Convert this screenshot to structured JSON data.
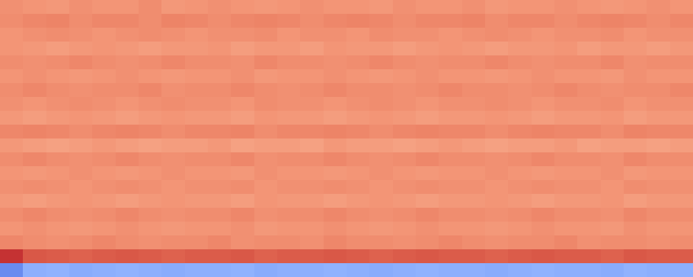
{
  "chart_data": {
    "type": "heatmap",
    "tick_labels": false,
    "zlim": [
      0,
      1
    ],
    "cells": [
      [
        0.77,
        0.76,
        0.75,
        0.77,
        0.76,
        0.76,
        0.78,
        0.75,
        0.76,
        0.77,
        0.76,
        0.75,
        0.76,
        0.77,
        0.76,
        0.76,
        0.75,
        0.77,
        0.76,
        0.76,
        0.77,
        0.75,
        0.76,
        0.76,
        0.77,
        0.76,
        0.75,
        0.76,
        0.77,
        0.76
      ],
      [
        0.78,
        0.79,
        0.8,
        0.78,
        0.79,
        0.79,
        0.78,
        0.8,
        0.79,
        0.78,
        0.79,
        0.8,
        0.79,
        0.78,
        0.79,
        0.8,
        0.79,
        0.78,
        0.79,
        0.79,
        0.8,
        0.78,
        0.79,
        0.79,
        0.78,
        0.79,
        0.8,
        0.79,
        0.78,
        0.79
      ],
      [
        0.76,
        0.77,
        0.78,
        0.77,
        0.76,
        0.77,
        0.78,
        0.77,
        0.76,
        0.77,
        0.77,
        0.78,
        0.76,
        0.77,
        0.77,
        0.76,
        0.78,
        0.77,
        0.77,
        0.76,
        0.77,
        0.78,
        0.77,
        0.76,
        0.77,
        0.77,
        0.78,
        0.76,
        0.77,
        0.77
      ],
      [
        0.76,
        0.75,
        0.74,
        0.75,
        0.76,
        0.75,
        0.74,
        0.75,
        0.75,
        0.76,
        0.74,
        0.75,
        0.75,
        0.74,
        0.76,
        0.75,
        0.75,
        0.74,
        0.75,
        0.76,
        0.75,
        0.74,
        0.75,
        0.75,
        0.76,
        0.74,
        0.75,
        0.75,
        0.74,
        0.75
      ],
      [
        0.78,
        0.77,
        0.78,
        0.79,
        0.78,
        0.77,
        0.78,
        0.79,
        0.78,
        0.78,
        0.77,
        0.79,
        0.78,
        0.78,
        0.77,
        0.78,
        0.79,
        0.78,
        0.77,
        0.78,
        0.78,
        0.79,
        0.78,
        0.77,
        0.78,
        0.78,
        0.79,
        0.77,
        0.78,
        0.78
      ],
      [
        0.76,
        0.77,
        0.76,
        0.75,
        0.76,
        0.77,
        0.76,
        0.75,
        0.76,
        0.76,
        0.77,
        0.75,
        0.76,
        0.76,
        0.77,
        0.76,
        0.75,
        0.76,
        0.77,
        0.76,
        0.76,
        0.75,
        0.76,
        0.77,
        0.76,
        0.76,
        0.75,
        0.77,
        0.76,
        0.76
      ],
      [
        0.78,
        0.79,
        0.78,
        0.77,
        0.78,
        0.78,
        0.79,
        0.77,
        0.78,
        0.78,
        0.79,
        0.78,
        0.77,
        0.78,
        0.79,
        0.78,
        0.78,
        0.77,
        0.78,
        0.79,
        0.78,
        0.78,
        0.77,
        0.78,
        0.79,
        0.78,
        0.77,
        0.78,
        0.78,
        0.79
      ],
      [
        0.77,
        0.76,
        0.77,
        0.78,
        0.77,
        0.76,
        0.77,
        0.78,
        0.77,
        0.77,
        0.76,
        0.78,
        0.77,
        0.77,
        0.76,
        0.77,
        0.78,
        0.77,
        0.76,
        0.77,
        0.77,
        0.78,
        0.77,
        0.76,
        0.77,
        0.77,
        0.78,
        0.76,
        0.77,
        0.77
      ],
      [
        0.75,
        0.74,
        0.75,
        0.76,
        0.75,
        0.74,
        0.75,
        0.76,
        0.75,
        0.75,
        0.74,
        0.76,
        0.75,
        0.75,
        0.74,
        0.75,
        0.76,
        0.75,
        0.74,
        0.75,
        0.75,
        0.76,
        0.75,
        0.74,
        0.75,
        0.75,
        0.76,
        0.74,
        0.75,
        0.75
      ],
      [
        0.79,
        0.8,
        0.79,
        0.78,
        0.79,
        0.8,
        0.79,
        0.78,
        0.79,
        0.79,
        0.8,
        0.78,
        0.79,
        0.79,
        0.8,
        0.79,
        0.78,
        0.79,
        0.8,
        0.79,
        0.79,
        0.78,
        0.79,
        0.8,
        0.79,
        0.79,
        0.78,
        0.8,
        0.79,
        0.79
      ],
      [
        0.75,
        0.74,
        0.73,
        0.74,
        0.75,
        0.74,
        0.73,
        0.74,
        0.74,
        0.75,
        0.73,
        0.74,
        0.74,
        0.73,
        0.75,
        0.74,
        0.74,
        0.73,
        0.74,
        0.75,
        0.74,
        0.73,
        0.74,
        0.74,
        0.75,
        0.73,
        0.74,
        0.74,
        0.73,
        0.74
      ],
      [
        0.78,
        0.79,
        0.78,
        0.77,
        0.78,
        0.79,
        0.78,
        0.77,
        0.78,
        0.78,
        0.79,
        0.77,
        0.78,
        0.78,
        0.79,
        0.78,
        0.77,
        0.78,
        0.79,
        0.78,
        0.78,
        0.77,
        0.78,
        0.79,
        0.78,
        0.78,
        0.77,
        0.79,
        0.78,
        0.78
      ],
      [
        0.76,
        0.75,
        0.76,
        0.77,
        0.76,
        0.75,
        0.76,
        0.77,
        0.76,
        0.76,
        0.75,
        0.77,
        0.76,
        0.76,
        0.75,
        0.76,
        0.77,
        0.76,
        0.75,
        0.76,
        0.76,
        0.77,
        0.76,
        0.75,
        0.76,
        0.76,
        0.77,
        0.75,
        0.76,
        0.76
      ],
      [
        0.77,
        0.78,
        0.77,
        0.76,
        0.77,
        0.78,
        0.77,
        0.76,
        0.77,
        0.77,
        0.78,
        0.76,
        0.77,
        0.77,
        0.78,
        0.77,
        0.76,
        0.77,
        0.78,
        0.77,
        0.77,
        0.76,
        0.77,
        0.78,
        0.77,
        0.77,
        0.76,
        0.78,
        0.77,
        0.77
      ],
      [
        0.75,
        0.74,
        0.75,
        0.76,
        0.75,
        0.74,
        0.75,
        0.76,
        0.75,
        0.75,
        0.74,
        0.76,
        0.75,
        0.75,
        0.74,
        0.75,
        0.76,
        0.75,
        0.74,
        0.75,
        0.75,
        0.76,
        0.75,
        0.74,
        0.75,
        0.75,
        0.76,
        0.74,
        0.75,
        0.75
      ],
      [
        0.78,
        0.79,
        0.78,
        0.77,
        0.78,
        0.79,
        0.78,
        0.77,
        0.78,
        0.78,
        0.79,
        0.77,
        0.78,
        0.78,
        0.79,
        0.78,
        0.77,
        0.78,
        0.79,
        0.78,
        0.78,
        0.77,
        0.78,
        0.79,
        0.78,
        0.78,
        0.77,
        0.79,
        0.78,
        0.78
      ],
      [
        0.76,
        0.77,
        0.76,
        0.75,
        0.76,
        0.77,
        0.76,
        0.75,
        0.76,
        0.76,
        0.77,
        0.75,
        0.76,
        0.76,
        0.77,
        0.76,
        0.75,
        0.76,
        0.77,
        0.76,
        0.76,
        0.75,
        0.76,
        0.77,
        0.76,
        0.76,
        0.75,
        0.77,
        0.76,
        0.76
      ],
      [
        0.79,
        0.78,
        0.77,
        0.78,
        0.79,
        0.78,
        0.77,
        0.78,
        0.78,
        0.79,
        0.77,
        0.78,
        0.78,
        0.77,
        0.79,
        0.78,
        0.78,
        0.77,
        0.78,
        0.79,
        0.78,
        0.77,
        0.78,
        0.78,
        0.79,
        0.77,
        0.78,
        0.78,
        0.77,
        0.78
      ],
      [
        0.95,
        0.89,
        0.88,
        0.87,
        0.88,
        0.89,
        0.88,
        0.87,
        0.88,
        0.88,
        0.89,
        0.87,
        0.88,
        0.88,
        0.89,
        0.88,
        0.87,
        0.88,
        0.89,
        0.88,
        0.88,
        0.87,
        0.88,
        0.89,
        0.88,
        0.88,
        0.87,
        0.89,
        0.88,
        0.88
      ],
      [
        0.15,
        0.25,
        0.26,
        0.24,
        0.25,
        0.26,
        0.25,
        0.24,
        0.25,
        0.25,
        0.26,
        0.24,
        0.25,
        0.25,
        0.26,
        0.25,
        0.24,
        0.25,
        0.26,
        0.25,
        0.25,
        0.24,
        0.25,
        0.26,
        0.25,
        0.25,
        0.24,
        0.26,
        0.25,
        0.25
      ]
    ]
  }
}
